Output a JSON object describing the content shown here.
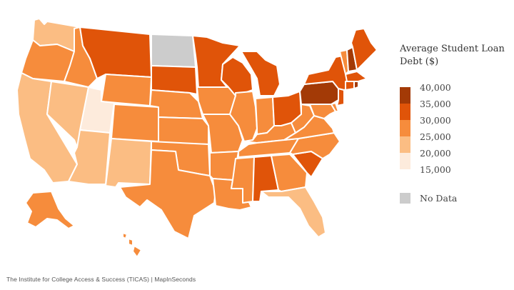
{
  "legend": {
    "title": "Average Student Loan Debt ($)",
    "ticks": [
      "40,000",
      "35,000",
      "30,000",
      "25,000",
      "20,000",
      "15,000"
    ],
    "colors": [
      "#a33a06",
      "#e05409",
      "#f68c3c",
      "#fbbd83",
      "#fdebdc"
    ],
    "no_data_label": "No Data",
    "no_data_color": "#cccccc"
  },
  "source": "The Institute for College Access & Success (TICAS)  |  MapInSeconds",
  "palette": {
    "darkest": "#a33a06",
    "dark": "#e05409",
    "medium": "#f68c3c",
    "light": "#fbbd83",
    "lightest": "#fdebdc",
    "no_data": "#cccccc"
  },
  "states": {
    "WA": "light",
    "OR": "medium",
    "CA": "light",
    "NV": "light",
    "ID": "medium",
    "MT": "dark",
    "WY": "medium",
    "UT": "lightest",
    "AZ": "light",
    "CO": "medium",
    "NM": "light",
    "ND": "no_data",
    "SD": "dark",
    "NE": "medium",
    "KS": "medium",
    "OK": "medium",
    "TX": "medium",
    "MN": "dark",
    "IA": "medium",
    "MO": "medium",
    "AR": "medium",
    "LA": "medium",
    "WI": "dark",
    "IL": "medium",
    "MI": "dark",
    "IN": "medium",
    "OH": "dark",
    "KY": "medium",
    "TN": "medium",
    "MS": "medium",
    "AL": "dark",
    "GA": "medium",
    "FL": "light",
    "SC": "dark",
    "NC": "medium",
    "VA": "medium",
    "WV": "medium",
    "PA": "darkest",
    "NY": "dark",
    "VT": "medium",
    "NH": "darkest",
    "ME": "dark",
    "MA": "dark",
    "CT": "dark",
    "RI": "darkest",
    "NJ": "dark",
    "DE": "medium",
    "MD": "medium",
    "AK": "medium",
    "HI": "medium"
  }
}
